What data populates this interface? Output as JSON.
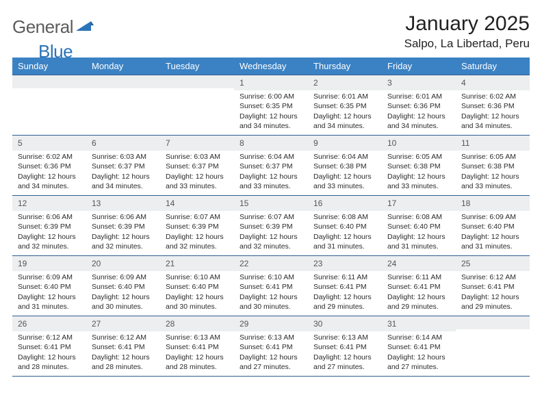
{
  "logo": {
    "word1": "General",
    "word2": "Blue",
    "word1_color": "#5c5c5c",
    "word2_color": "#2b74b8"
  },
  "title": "January 2025",
  "location": "Salpo, La Libertad, Peru",
  "colors": {
    "header_bg": "#3b82c4",
    "header_text": "#ffffff",
    "row_border": "#2f5e8e",
    "daynum_bg": "#eceef0",
    "body_text": "#2a2a2a"
  },
  "day_headers": [
    "Sunday",
    "Monday",
    "Tuesday",
    "Wednesday",
    "Thursday",
    "Friday",
    "Saturday"
  ],
  "weeks": [
    [
      {
        "n": "",
        "sr": "",
        "ss": "",
        "dl": ""
      },
      {
        "n": "",
        "sr": "",
        "ss": "",
        "dl": ""
      },
      {
        "n": "",
        "sr": "",
        "ss": "",
        "dl": ""
      },
      {
        "n": "1",
        "sr": "6:00 AM",
        "ss": "6:35 PM",
        "dl": "12 hours and 34 minutes."
      },
      {
        "n": "2",
        "sr": "6:01 AM",
        "ss": "6:35 PM",
        "dl": "12 hours and 34 minutes."
      },
      {
        "n": "3",
        "sr": "6:01 AM",
        "ss": "6:36 PM",
        "dl": "12 hours and 34 minutes."
      },
      {
        "n": "4",
        "sr": "6:02 AM",
        "ss": "6:36 PM",
        "dl": "12 hours and 34 minutes."
      }
    ],
    [
      {
        "n": "5",
        "sr": "6:02 AM",
        "ss": "6:36 PM",
        "dl": "12 hours and 34 minutes."
      },
      {
        "n": "6",
        "sr": "6:03 AM",
        "ss": "6:37 PM",
        "dl": "12 hours and 34 minutes."
      },
      {
        "n": "7",
        "sr": "6:03 AM",
        "ss": "6:37 PM",
        "dl": "12 hours and 33 minutes."
      },
      {
        "n": "8",
        "sr": "6:04 AM",
        "ss": "6:37 PM",
        "dl": "12 hours and 33 minutes."
      },
      {
        "n": "9",
        "sr": "6:04 AM",
        "ss": "6:38 PM",
        "dl": "12 hours and 33 minutes."
      },
      {
        "n": "10",
        "sr": "6:05 AM",
        "ss": "6:38 PM",
        "dl": "12 hours and 33 minutes."
      },
      {
        "n": "11",
        "sr": "6:05 AM",
        "ss": "6:38 PM",
        "dl": "12 hours and 33 minutes."
      }
    ],
    [
      {
        "n": "12",
        "sr": "6:06 AM",
        "ss": "6:39 PM",
        "dl": "12 hours and 32 minutes."
      },
      {
        "n": "13",
        "sr": "6:06 AM",
        "ss": "6:39 PM",
        "dl": "12 hours and 32 minutes."
      },
      {
        "n": "14",
        "sr": "6:07 AM",
        "ss": "6:39 PM",
        "dl": "12 hours and 32 minutes."
      },
      {
        "n": "15",
        "sr": "6:07 AM",
        "ss": "6:39 PM",
        "dl": "12 hours and 32 minutes."
      },
      {
        "n": "16",
        "sr": "6:08 AM",
        "ss": "6:40 PM",
        "dl": "12 hours and 31 minutes."
      },
      {
        "n": "17",
        "sr": "6:08 AM",
        "ss": "6:40 PM",
        "dl": "12 hours and 31 minutes."
      },
      {
        "n": "18",
        "sr": "6:09 AM",
        "ss": "6:40 PM",
        "dl": "12 hours and 31 minutes."
      }
    ],
    [
      {
        "n": "19",
        "sr": "6:09 AM",
        "ss": "6:40 PM",
        "dl": "12 hours and 31 minutes."
      },
      {
        "n": "20",
        "sr": "6:09 AM",
        "ss": "6:40 PM",
        "dl": "12 hours and 30 minutes."
      },
      {
        "n": "21",
        "sr": "6:10 AM",
        "ss": "6:40 PM",
        "dl": "12 hours and 30 minutes."
      },
      {
        "n": "22",
        "sr": "6:10 AM",
        "ss": "6:41 PM",
        "dl": "12 hours and 30 minutes."
      },
      {
        "n": "23",
        "sr": "6:11 AM",
        "ss": "6:41 PM",
        "dl": "12 hours and 29 minutes."
      },
      {
        "n": "24",
        "sr": "6:11 AM",
        "ss": "6:41 PM",
        "dl": "12 hours and 29 minutes."
      },
      {
        "n": "25",
        "sr": "6:12 AM",
        "ss": "6:41 PM",
        "dl": "12 hours and 29 minutes."
      }
    ],
    [
      {
        "n": "26",
        "sr": "6:12 AM",
        "ss": "6:41 PM",
        "dl": "12 hours and 28 minutes."
      },
      {
        "n": "27",
        "sr": "6:12 AM",
        "ss": "6:41 PM",
        "dl": "12 hours and 28 minutes."
      },
      {
        "n": "28",
        "sr": "6:13 AM",
        "ss": "6:41 PM",
        "dl": "12 hours and 28 minutes."
      },
      {
        "n": "29",
        "sr": "6:13 AM",
        "ss": "6:41 PM",
        "dl": "12 hours and 27 minutes."
      },
      {
        "n": "30",
        "sr": "6:13 AM",
        "ss": "6:41 PM",
        "dl": "12 hours and 27 minutes."
      },
      {
        "n": "31",
        "sr": "6:14 AM",
        "ss": "6:41 PM",
        "dl": "12 hours and 27 minutes."
      },
      {
        "n": "",
        "sr": "",
        "ss": "",
        "dl": ""
      }
    ]
  ],
  "labels": {
    "sunrise": "Sunrise:",
    "sunset": "Sunset:",
    "daylight": "Daylight:"
  }
}
